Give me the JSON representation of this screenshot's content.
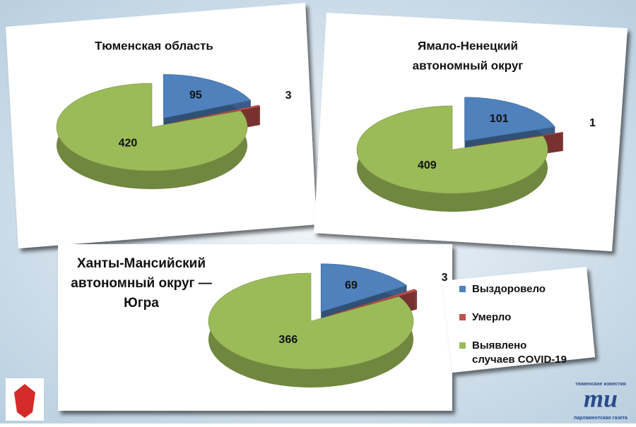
{
  "chart_data": [
    {
      "type": "pie",
      "title": [
        "Тюменская область"
      ],
      "values": [
        95,
        3,
        420
      ]
    },
    {
      "type": "pie",
      "title": [
        "Ямало-Ненецкий",
        "автономный округ"
      ],
      "values": [
        101,
        1,
        409
      ]
    },
    {
      "type": "pie",
      "title": [
        "Ханты-Мансийский",
        "автономный округ —",
        "Югра"
      ],
      "values": [
        69,
        3,
        366
      ]
    }
  ],
  "legend": {
    "labels": [
      [
        "Выздоровело"
      ],
      [
        "Умерло"
      ],
      [
        "Выявлено",
        "случаев COVID-19"
      ]
    ],
    "colors": [
      "#4f81bd",
      "#c0504d",
      "#9bbb59"
    ]
  },
  "branding": {
    "name_top": "тюменские известия",
    "logo": "ти",
    "name_bottom": "парламентская газета"
  }
}
